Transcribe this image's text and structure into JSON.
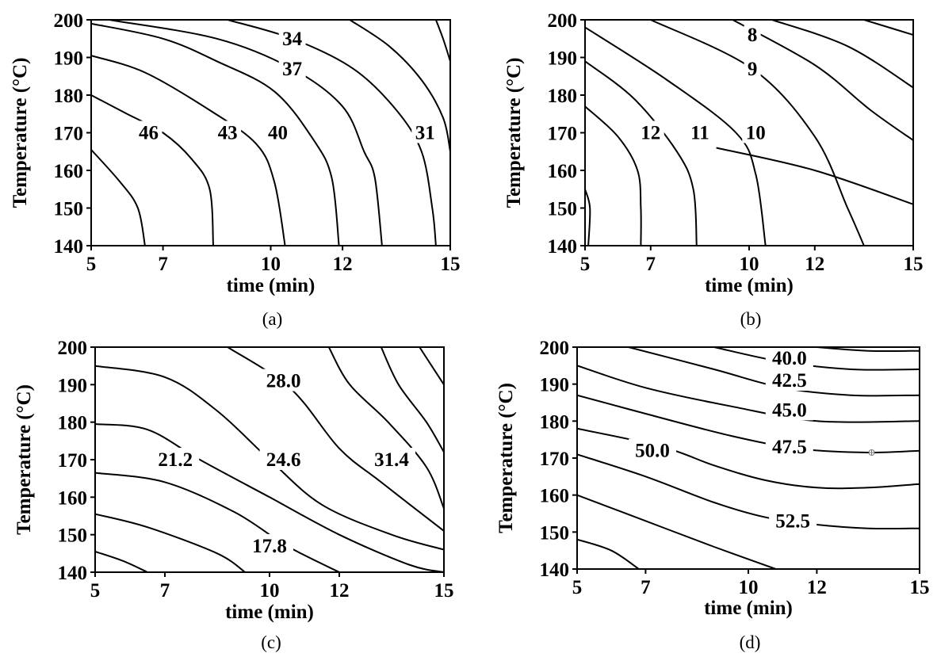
{
  "chart_data": [
    {
      "type": "contour",
      "panel_label": "(a)",
      "xlabel": "time (min)",
      "ylabel": "Temperature (°C)",
      "xlim": [
        5,
        15
      ],
      "ylim": [
        140,
        200
      ],
      "xticks": [
        "5",
        "7",
        "10",
        "12",
        "15"
      ],
      "yticks": [
        "140",
        "150",
        "160",
        "170",
        "180",
        "190",
        "200"
      ],
      "contours": [
        {
          "label": "",
          "points": [
            [
              5.0,
              165.5
            ],
            [
              5.8,
              157
            ],
            [
              6.3,
              150
            ],
            [
              6.5,
              140
            ]
          ]
        },
        {
          "label": "46",
          "label_at": [
            6.6,
            170
          ],
          "points": [
            [
              5.0,
              180
            ],
            [
              6.0,
              175
            ],
            [
              7.0,
              170
            ],
            [
              7.8,
              163
            ],
            [
              8.3,
              155
            ],
            [
              8.4,
              140
            ]
          ]
        },
        {
          "label": "43",
          "label_at": [
            8.8,
            170
          ],
          "points": [
            [
              5.0,
              190.5
            ],
            [
              6.5,
              186
            ],
            [
              8.3,
              176
            ],
            [
              9.6,
              167
            ],
            [
              10.1,
              157
            ],
            [
              10.4,
              140
            ]
          ]
        },
        {
          "label": "40",
          "label_at": [
            10.2,
            170
          ],
          "points": [
            [
              5.0,
              199
            ],
            [
              7.0,
              195
            ],
            [
              8.5,
              189
            ],
            [
              10.1,
              181
            ],
            [
              11.2,
              168
            ],
            [
              11.7,
              158
            ],
            [
              11.9,
              140
            ]
          ]
        },
        {
          "label": "37",
          "label_at": [
            10.6,
            187
          ],
          "points": [
            [
              5.5,
              200
            ],
            [
              8.5,
              195
            ],
            [
              10.6,
              187
            ],
            [
              12.0,
              177
            ],
            [
              12.6,
              165
            ],
            [
              12.9,
              158
            ],
            [
              13.1,
              140
            ]
          ]
        },
        {
          "label": "34",
          "label_at": [
            10.6,
            195
          ],
          "points": [
            [
              8.8,
              200
            ],
            [
              10.6,
              195
            ],
            [
              12.3,
              187
            ],
            [
              13.5,
              176
            ],
            [
              14.2,
              165
            ],
            [
              14.5,
              150
            ],
            [
              14.6,
              140
            ]
          ]
        },
        {
          "label": "31",
          "label_at": [
            14.3,
            170
          ],
          "points": [
            [
              12.2,
              200
            ],
            [
              13.3,
              193
            ],
            [
              14.2,
              184
            ],
            [
              14.8,
              174
            ],
            [
              15.0,
              165
            ]
          ]
        },
        {
          "label": "",
          "points": [
            [
              14.6,
              200
            ],
            [
              14.8,
              195
            ],
            [
              15.0,
              189
            ]
          ]
        }
      ]
    },
    {
      "type": "contour",
      "panel_label": "(b)",
      "xlabel": "time (min)",
      "ylabel": "Temperature (°C)",
      "xlim": [
        5,
        15
      ],
      "ylim": [
        140,
        200
      ],
      "xticks": [
        "5",
        "7",
        "10",
        "12",
        "15"
      ],
      "yticks": [
        "140",
        "150",
        "160",
        "170",
        "180",
        "190",
        "200"
      ],
      "contours": [
        {
          "label": "",
          "points": [
            [
              5.0,
              155
            ],
            [
              5.15,
              150
            ],
            [
              5.1,
              140
            ]
          ]
        },
        {
          "label": "12",
          "label_at": [
            7.0,
            170
          ],
          "points": [
            [
              5.0,
              177
            ],
            [
              6.0,
              169
            ],
            [
              6.6,
              160
            ],
            [
              6.7,
              150
            ],
            [
              6.7,
              140
            ]
          ]
        },
        {
          "label": "11",
          "label_at": [
            8.5,
            170
          ],
          "points": [
            [
              5.0,
              189
            ],
            [
              6.5,
              179
            ],
            [
              7.8,
              165
            ],
            [
              8.3,
              155
            ],
            [
              8.4,
              140
            ]
          ]
        },
        {
          "label": "10",
          "label_at": [
            10.2,
            170
          ],
          "points": [
            [
              5.0,
              198
            ],
            [
              7.5,
              184
            ],
            [
              9.6,
              170
            ],
            [
              10.2,
              159
            ],
            [
              10.5,
              140
            ]
          ]
        },
        {
          "label": "9",
          "label_at": [
            10.1,
            187
          ],
          "points": [
            [
              7.0,
              200
            ],
            [
              10.1,
              187
            ],
            [
              12.0,
              169
            ],
            [
              13.0,
              150
            ],
            [
              13.5,
              140
            ]
          ]
        },
        {
          "label": "8",
          "label_at": [
            10.1,
            196
          ],
          "points": [
            [
              9.5,
              200
            ],
            [
              12.0,
              188
            ],
            [
              13.7,
              176
            ],
            [
              15.0,
              168
            ]
          ]
        },
        {
          "label": "",
          "points": [
            [
              10.7,
              200
            ],
            [
              13.0,
              193
            ],
            [
              15.0,
              182
            ]
          ]
        },
        {
          "label": "",
          "points": [
            [
              13.5,
              200
            ],
            [
              15.0,
              196
            ]
          ]
        },
        {
          "label": "",
          "points": [
            [
              9.0,
              166
            ],
            [
              12.0,
              160
            ],
            [
              15.0,
              151
            ]
          ]
        }
      ]
    },
    {
      "type": "contour",
      "panel_label": "(c)",
      "xlabel": "time (min)",
      "ylabel": "Temperature (°C)",
      "xlim": [
        5,
        15
      ],
      "ylim": [
        140,
        200
      ],
      "xticks": [
        "5",
        "7",
        "10",
        "12",
        "15"
      ],
      "yticks": [
        "140",
        "150",
        "160",
        "170",
        "180",
        "190",
        "200"
      ],
      "contours": [
        {
          "label": "",
          "points": [
            [
              5.0,
              145.5
            ],
            [
              5.8,
              143
            ],
            [
              6.5,
              140
            ]
          ]
        },
        {
          "label": "",
          "points": [
            [
              5.0,
              155.5
            ],
            [
              6.5,
              152
            ],
            [
              8.5,
              145
            ],
            [
              9.3,
              140
            ]
          ]
        },
        {
          "label": "17.8",
          "label_at": [
            10.0,
            147
          ],
          "points": [
            [
              5.0,
              166.5
            ],
            [
              7.0,
              164
            ],
            [
              9.0,
              156
            ],
            [
              10.5,
              147
            ],
            [
              12.0,
              140
            ]
          ]
        },
        {
          "label": "",
          "points": [
            [
              5.0,
              179.5
            ],
            [
              6.5,
              178
            ],
            [
              8.0,
              170
            ],
            [
              10.0,
              160
            ],
            [
              12.0,
              150
            ],
            [
              14.0,
              142
            ],
            [
              15.0,
              140
            ]
          ]
        },
        {
          "label": "21.2",
          "label_at": [
            7.3,
            170
          ],
          "points": [
            [
              5.0,
              195
            ],
            [
              7.0,
              192
            ],
            [
              8.5,
              183
            ],
            [
              10.0,
              170
            ],
            [
              11.5,
              158
            ],
            [
              13.5,
              150
            ],
            [
              15.0,
              146
            ]
          ]
        },
        {
          "label": "24.6",
          "label_at": [
            10.4,
            170
          ],
          "points": [
            [
              8.8,
              200
            ],
            [
              10.6,
              189
            ],
            [
              12.0,
              173
            ],
            [
              13.2,
              164
            ],
            [
              15.0,
              151
            ]
          ]
        },
        {
          "label": "28.0",
          "label_at": [
            10.4,
            191
          ],
          "points": [
            [
              11.7,
              200
            ],
            [
              12.3,
              190
            ],
            [
              13.4,
              180
            ],
            [
              14.5,
              168
            ],
            [
              15.0,
              157
            ]
          ]
        },
        {
          "label": "31.4",
          "label_at": [
            13.5,
            170
          ],
          "points": [
            [
              13.2,
              200
            ],
            [
              13.7,
              190
            ],
            [
              14.5,
              180
            ],
            [
              15.0,
              172
            ]
          ]
        },
        {
          "label": "",
          "points": [
            [
              14.3,
              200
            ],
            [
              15.0,
              190
            ]
          ]
        }
      ]
    },
    {
      "type": "contour",
      "panel_label": "(d)",
      "xlabel": "time (min)",
      "ylabel": "Temperature (°C)",
      "xlim": [
        5,
        15
      ],
      "ylim": [
        140,
        200
      ],
      "xticks": [
        "5",
        "7",
        "10",
        "12",
        "15"
      ],
      "yticks": [
        "140",
        "150",
        "160",
        "170",
        "180",
        "190",
        "200"
      ],
      "contours": [
        {
          "label": "",
          "points": [
            [
              5.0,
              148
            ],
            [
              6.0,
              145
            ],
            [
              6.8,
              140
            ]
          ]
        },
        {
          "label": "",
          "points": [
            [
              5.0,
              160
            ],
            [
              7.0,
              153
            ],
            [
              9.0,
              146
            ],
            [
              10.8,
              140
            ]
          ]
        },
        {
          "label": "52.5",
          "label_at": [
            11.3,
            153
          ],
          "points": [
            [
              5.0,
              171
            ],
            [
              7.0,
              165
            ],
            [
              9.0,
              158
            ],
            [
              10.5,
              154
            ],
            [
              12.0,
              152
            ],
            [
              13.5,
              151
            ],
            [
              15.0,
              151
            ]
          ]
        },
        {
          "label": "",
          "points": [
            [
              5.0,
              178
            ],
            [
              7.5,
              173
            ],
            [
              9.0,
              168
            ],
            [
              10.5,
              164
            ],
            [
              12.0,
              162
            ],
            [
              13.5,
              162
            ],
            [
              15.0,
              163
            ]
          ]
        },
        {
          "label": "50.0",
          "label_at": [
            7.2,
            172
          ],
          "points": [
            [
              5.0,
              187
            ],
            [
              7.0,
              182
            ],
            [
              9.5,
              176
            ],
            [
              11.5,
              172.5
            ],
            [
              13.5,
              171.5
            ],
            [
              15.0,
              172
            ]
          ]
        },
        {
          "label": "47.5",
          "label_at": [
            11.2,
            173
          ],
          "points": [
            [
              5.0,
              195
            ],
            [
              7.0,
              189
            ],
            [
              9.5,
              184
            ],
            [
              12.0,
              180
            ],
            [
              15.0,
              180
            ]
          ]
        },
        {
          "label": "45.0",
          "label_at": [
            11.2,
            183
          ],
          "points": [
            [
              6.5,
              200
            ],
            [
              9.0,
              194
            ],
            [
              11.0,
              189
            ],
            [
              13.0,
              187
            ],
            [
              15.0,
              187
            ]
          ]
        },
        {
          "label": "42.5",
          "label_at": [
            11.2,
            191
          ],
          "points": [
            [
              9.0,
              200
            ],
            [
              11.0,
              196
            ],
            [
              13.0,
              194
            ],
            [
              15.0,
              194
            ]
          ]
        },
        {
          "label": "40.0",
          "label_at": [
            11.2,
            197
          ],
          "points": [
            [
              12.0,
              200
            ],
            [
              13.5,
              199
            ],
            [
              15.0,
              199
            ]
          ]
        }
      ],
      "marker": {
        "point": [
          13.6,
          171.5
        ],
        "symbol": "circle-cross"
      }
    }
  ]
}
